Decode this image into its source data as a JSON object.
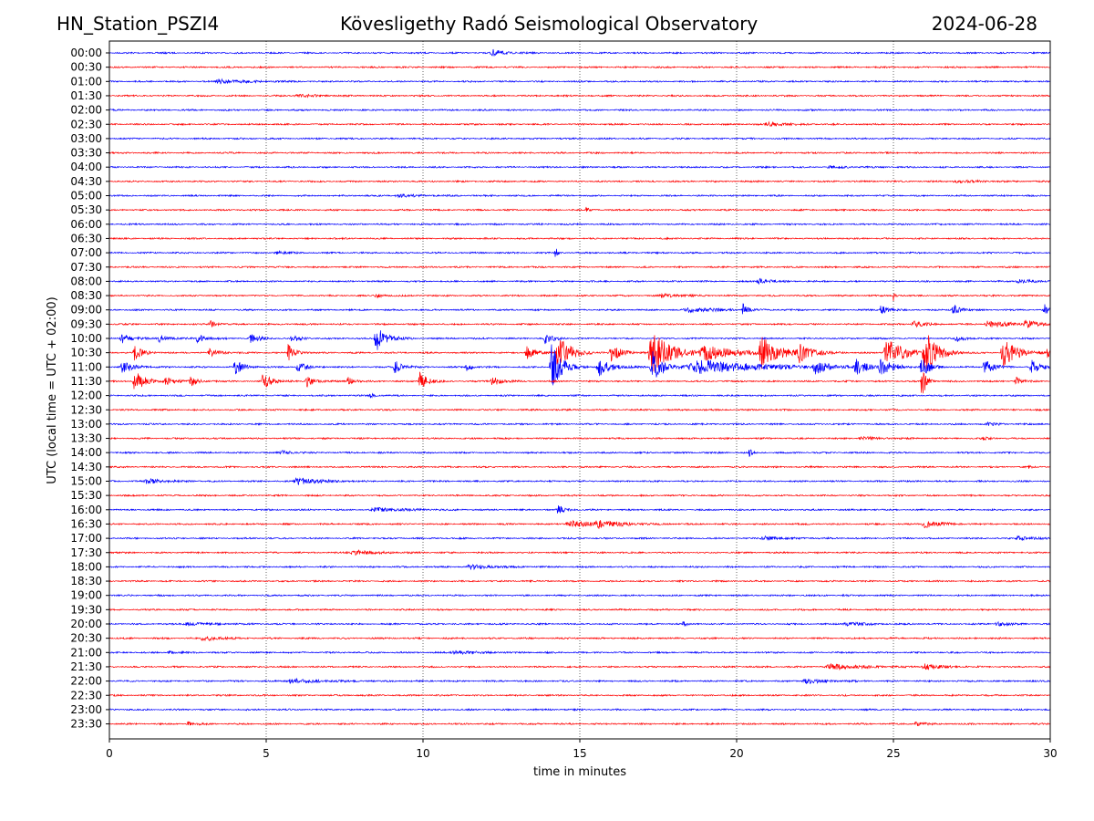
{
  "header": {
    "station": "HN_Station_PSZI4",
    "observatory": "Kövesligethy Radó Seismological Observatory",
    "date": "2024-06-28"
  },
  "chart_data": {
    "type": "line",
    "title": "Kövesligethy Radó Seismological Observatory",
    "xlabel": "time in minutes",
    "ylabel": "UTC (local time = UTC + 02:00)",
    "xlim": [
      0,
      30
    ],
    "xticks": [
      0,
      5,
      10,
      15,
      20,
      25,
      30
    ],
    "gridlines_x": [
      5,
      10,
      15,
      20,
      25
    ],
    "row_colors": [
      "#0000ff",
      "#ff0000"
    ],
    "rows": [
      {
        "label": "00:00",
        "color": "blue",
        "events": [
          {
            "t": 12.2,
            "amp": 0.35,
            "dur": 0.6
          }
        ]
      },
      {
        "label": "00:30",
        "color": "red",
        "events": []
      },
      {
        "label": "01:00",
        "color": "blue",
        "events": [
          {
            "t": 3.5,
            "amp": 0.25,
            "dur": 1.2
          }
        ]
      },
      {
        "label": "01:30",
        "color": "red",
        "events": [
          {
            "t": 6.0,
            "amp": 0.15,
            "dur": 1.0
          }
        ]
      },
      {
        "label": "02:00",
        "color": "blue",
        "events": []
      },
      {
        "label": "02:30",
        "color": "red",
        "events": [
          {
            "t": 21.0,
            "amp": 0.2,
            "dur": 1.0
          }
        ]
      },
      {
        "label": "03:00",
        "color": "blue",
        "events": []
      },
      {
        "label": "03:30",
        "color": "red",
        "events": []
      },
      {
        "label": "04:00",
        "color": "blue",
        "events": [
          {
            "t": 23.0,
            "amp": 0.12,
            "dur": 1.0
          }
        ]
      },
      {
        "label": "04:30",
        "color": "red",
        "events": [
          {
            "t": 27.0,
            "amp": 0.15,
            "dur": 1.0
          }
        ]
      },
      {
        "label": "05:00",
        "color": "blue",
        "events": [
          {
            "t": 9.2,
            "amp": 0.15,
            "dur": 1.0
          }
        ]
      },
      {
        "label": "05:30",
        "color": "red",
        "events": [
          {
            "t": 15.2,
            "amp": 0.4,
            "dur": 0.1
          }
        ]
      },
      {
        "label": "06:00",
        "color": "blue",
        "events": []
      },
      {
        "label": "06:30",
        "color": "red",
        "events": []
      },
      {
        "label": "07:00",
        "color": "blue",
        "events": [
          {
            "t": 14.2,
            "amp": 1.0,
            "dur": 0.1
          },
          {
            "t": 5.3,
            "amp": 0.2,
            "dur": 0.5
          }
        ]
      },
      {
        "label": "07:30",
        "color": "red",
        "events": []
      },
      {
        "label": "08:00",
        "color": "blue",
        "events": [
          {
            "t": 20.7,
            "amp": 0.3,
            "dur": 0.5
          },
          {
            "t": 29.0,
            "amp": 0.2,
            "dur": 0.8
          }
        ]
      },
      {
        "label": "08:30",
        "color": "red",
        "events": [
          {
            "t": 8.5,
            "amp": 0.2,
            "dur": 0.4
          },
          {
            "t": 17.6,
            "amp": 0.2,
            "dur": 0.8
          },
          {
            "t": 25.0,
            "amp": 0.6,
            "dur": 0.1
          }
        ]
      },
      {
        "label": "09:00",
        "color": "blue",
        "events": [
          {
            "t": 20.2,
            "amp": 0.7,
            "dur": 0.2
          },
          {
            "t": 24.6,
            "amp": 0.6,
            "dur": 0.3
          },
          {
            "t": 26.9,
            "amp": 0.7,
            "dur": 0.3
          },
          {
            "t": 29.8,
            "amp": 0.7,
            "dur": 0.2
          },
          {
            "t": 18.5,
            "amp": 0.25,
            "dur": 1.5
          }
        ]
      },
      {
        "label": "09:30",
        "color": "red",
        "events": [
          {
            "t": 3.2,
            "amp": 0.4,
            "dur": 0.3
          },
          {
            "t": 25.6,
            "amp": 0.4,
            "dur": 0.5
          },
          {
            "t": 28.0,
            "amp": 0.4,
            "dur": 1.0
          },
          {
            "t": 29.2,
            "amp": 0.5,
            "dur": 0.5
          }
        ]
      },
      {
        "label": "10:00",
        "color": "blue",
        "events": [
          {
            "t": 8.5,
            "amp": 1.5,
            "dur": 0.5
          },
          {
            "t": 13.9,
            "amp": 0.6,
            "dur": 0.4
          },
          {
            "t": 0.4,
            "amp": 0.5,
            "dur": 0.5
          },
          {
            "t": 1.6,
            "amp": 0.4,
            "dur": 0.5
          },
          {
            "t": 2.8,
            "amp": 0.5,
            "dur": 0.4
          },
          {
            "t": 4.5,
            "amp": 0.5,
            "dur": 0.4
          },
          {
            "t": 5.8,
            "amp": 0.4,
            "dur": 0.4
          },
          {
            "t": 27.0,
            "amp": 0.4,
            "dur": 0.4
          }
        ]
      },
      {
        "label": "10:30",
        "color": "red",
        "events": [
          {
            "t": 14.3,
            "amp": 2.0,
            "dur": 0.6
          },
          {
            "t": 17.3,
            "amp": 2.5,
            "dur": 0.9
          },
          {
            "t": 20.8,
            "amp": 1.8,
            "dur": 0.8
          },
          {
            "t": 26.0,
            "amp": 2.4,
            "dur": 0.6
          },
          {
            "t": 24.8,
            "amp": 1.5,
            "dur": 0.9
          },
          {
            "t": 22.0,
            "amp": 1.0,
            "dur": 0.6
          },
          {
            "t": 28.5,
            "amp": 1.5,
            "dur": 0.7
          },
          {
            "t": 0.8,
            "amp": 0.8,
            "dur": 0.4
          },
          {
            "t": 5.7,
            "amp": 1.0,
            "dur": 0.3
          },
          {
            "t": 13.3,
            "amp": 0.8,
            "dur": 0.4
          },
          {
            "t": 16.0,
            "amp": 0.9,
            "dur": 0.5
          },
          {
            "t": 3.2,
            "amp": 0.4,
            "dur": 0.5
          },
          {
            "t": 19.0,
            "amp": 0.8,
            "dur": 1.5
          },
          {
            "t": 29.9,
            "amp": 0.6,
            "dur": 0.2
          }
        ]
      },
      {
        "label": "11:00",
        "color": "blue",
        "events": [
          {
            "t": 14.1,
            "amp": 2.5,
            "dur": 0.5
          },
          {
            "t": 17.3,
            "amp": 1.8,
            "dur": 0.6
          },
          {
            "t": 18.8,
            "amp": 0.8,
            "dur": 3.0
          },
          {
            "t": 25.9,
            "amp": 1.2,
            "dur": 0.4
          },
          {
            "t": 0.4,
            "amp": 0.8,
            "dur": 0.5
          },
          {
            "t": 4.0,
            "amp": 0.8,
            "dur": 0.4
          },
          {
            "t": 6.0,
            "amp": 0.6,
            "dur": 0.4
          },
          {
            "t": 9.1,
            "amp": 0.7,
            "dur": 0.4
          },
          {
            "t": 11.4,
            "amp": 0.6,
            "dur": 0.3
          },
          {
            "t": 15.6,
            "amp": 1.0,
            "dur": 0.6
          },
          {
            "t": 22.5,
            "amp": 0.8,
            "dur": 0.6
          },
          {
            "t": 23.8,
            "amp": 0.8,
            "dur": 0.6
          },
          {
            "t": 24.6,
            "amp": 1.0,
            "dur": 0.5
          },
          {
            "t": 27.9,
            "amp": 0.9,
            "dur": 0.4
          },
          {
            "t": 29.4,
            "amp": 0.8,
            "dur": 0.4
          }
        ]
      },
      {
        "label": "11:30",
        "color": "red",
        "events": [
          {
            "t": 0.8,
            "amp": 1.2,
            "dur": 0.5
          },
          {
            "t": 1.8,
            "amp": 0.5,
            "dur": 0.4
          },
          {
            "t": 2.6,
            "amp": 0.5,
            "dur": 0.4
          },
          {
            "t": 4.9,
            "amp": 1.0,
            "dur": 0.4
          },
          {
            "t": 6.3,
            "amp": 0.6,
            "dur": 0.4
          },
          {
            "t": 7.6,
            "amp": 0.5,
            "dur": 0.3
          },
          {
            "t": 9.9,
            "amp": 1.3,
            "dur": 0.3
          },
          {
            "t": 12.2,
            "amp": 0.6,
            "dur": 0.4
          },
          {
            "t": 25.9,
            "amp": 2.2,
            "dur": 0.2
          },
          {
            "t": 28.9,
            "amp": 0.5,
            "dur": 0.3
          }
        ]
      },
      {
        "label": "12:00",
        "color": "blue",
        "events": [
          {
            "t": 8.3,
            "amp": 0.3,
            "dur": 0.2
          }
        ]
      },
      {
        "label": "12:30",
        "color": "red",
        "events": []
      },
      {
        "label": "13:00",
        "color": "blue",
        "events": [
          {
            "t": 28.0,
            "amp": 0.15,
            "dur": 0.5
          }
        ]
      },
      {
        "label": "13:30",
        "color": "red",
        "events": [
          {
            "t": 24.0,
            "amp": 0.15,
            "dur": 1.0
          },
          {
            "t": 27.8,
            "amp": 0.2,
            "dur": 0.3
          }
        ]
      },
      {
        "label": "14:00",
        "color": "blue",
        "events": [
          {
            "t": 20.4,
            "amp": 0.6,
            "dur": 0.1
          },
          {
            "t": 5.5,
            "amp": 0.2,
            "dur": 0.5
          }
        ]
      },
      {
        "label": "14:30",
        "color": "red",
        "events": [
          {
            "t": 29.3,
            "amp": 0.3,
            "dur": 0.1
          }
        ]
      },
      {
        "label": "15:00",
        "color": "blue",
        "events": [
          {
            "t": 1.2,
            "amp": 0.3,
            "dur": 0.8
          },
          {
            "t": 6.0,
            "amp": 0.4,
            "dur": 1.0
          }
        ]
      },
      {
        "label": "15:30",
        "color": "red",
        "events": []
      },
      {
        "label": "16:00",
        "color": "blue",
        "events": [
          {
            "t": 8.5,
            "amp": 0.2,
            "dur": 1.5
          },
          {
            "t": 14.3,
            "amp": 0.5,
            "dur": 0.3
          }
        ]
      },
      {
        "label": "16:30",
        "color": "red",
        "events": [
          {
            "t": 14.7,
            "amp": 0.3,
            "dur": 1.5
          },
          {
            "t": 15.6,
            "amp": 0.4,
            "dur": 1.0
          },
          {
            "t": 26.0,
            "amp": 0.4,
            "dur": 0.8
          }
        ]
      },
      {
        "label": "17:00",
        "color": "blue",
        "events": [
          {
            "t": 20.9,
            "amp": 0.2,
            "dur": 1.0
          },
          {
            "t": 29.0,
            "amp": 0.2,
            "dur": 0.8
          }
        ]
      },
      {
        "label": "17:30",
        "color": "red",
        "events": [
          {
            "t": 7.8,
            "amp": 0.3,
            "dur": 1.0
          }
        ]
      },
      {
        "label": "18:00",
        "color": "blue",
        "events": [
          {
            "t": 11.5,
            "amp": 0.25,
            "dur": 1.0
          }
        ]
      },
      {
        "label": "18:30",
        "color": "red",
        "events": []
      },
      {
        "label": "19:00",
        "color": "blue",
        "events": [
          {
            "t": 23.4,
            "amp": 0.25,
            "dur": 0.1
          }
        ]
      },
      {
        "label": "19:30",
        "color": "red",
        "events": []
      },
      {
        "label": "20:00",
        "color": "blue",
        "events": [
          {
            "t": 2.5,
            "amp": 0.15,
            "dur": 1.2
          },
          {
            "t": 18.3,
            "amp": 0.3,
            "dur": 0.2
          },
          {
            "t": 23.5,
            "amp": 0.2,
            "dur": 1.0
          },
          {
            "t": 28.3,
            "amp": 0.25,
            "dur": 0.5
          }
        ]
      },
      {
        "label": "20:30",
        "color": "red",
        "events": [
          {
            "t": 3.0,
            "amp": 0.3,
            "dur": 0.8
          }
        ]
      },
      {
        "label": "21:00",
        "color": "blue",
        "events": [
          {
            "t": 11.0,
            "amp": 0.2,
            "dur": 1.2
          },
          {
            "t": 1.9,
            "amp": 0.2,
            "dur": 0.4
          }
        ]
      },
      {
        "label": "21:30",
        "color": "red",
        "events": [
          {
            "t": 23.0,
            "amp": 0.3,
            "dur": 1.5
          },
          {
            "t": 26.0,
            "amp": 0.3,
            "dur": 0.8
          }
        ]
      },
      {
        "label": "22:00",
        "color": "blue",
        "events": [
          {
            "t": 5.8,
            "amp": 0.25,
            "dur": 1.5
          },
          {
            "t": 22.2,
            "amp": 0.25,
            "dur": 1.0
          }
        ]
      },
      {
        "label": "22:30",
        "color": "red",
        "events": []
      },
      {
        "label": "23:00",
        "color": "blue",
        "events": []
      },
      {
        "label": "23:30",
        "color": "red",
        "events": [
          {
            "t": 2.5,
            "amp": 0.25,
            "dur": 0.4
          },
          {
            "t": 25.7,
            "amp": 0.25,
            "dur": 0.4
          }
        ]
      }
    ]
  }
}
